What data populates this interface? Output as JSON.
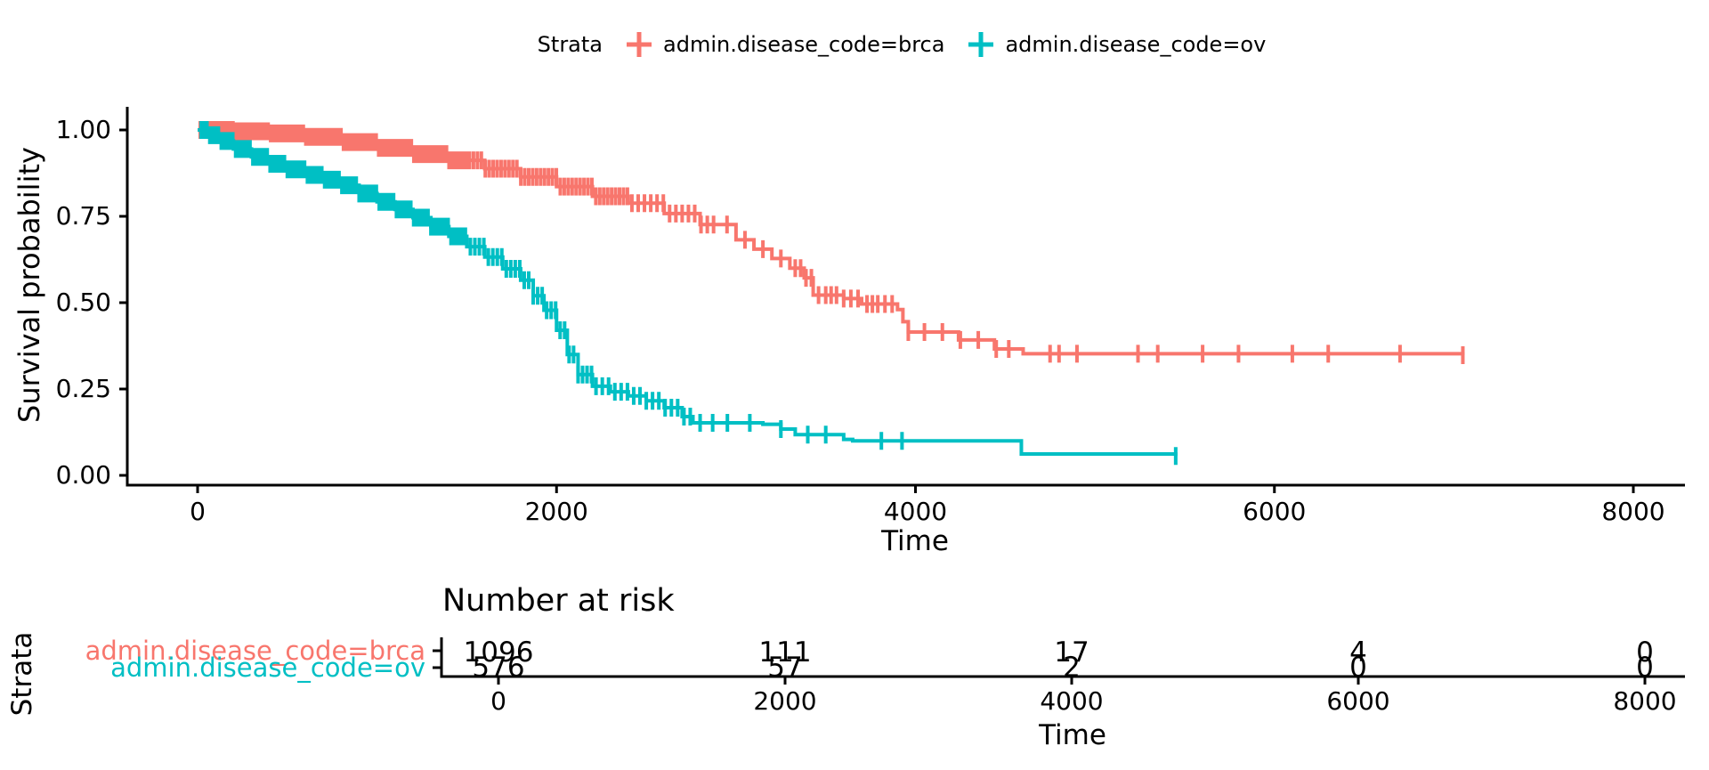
{
  "legend": {
    "title": "Strata",
    "entries": [
      {
        "label": "admin.disease_code=brca",
        "color": "#F8766D"
      },
      {
        "label": "admin.disease_code=ov",
        "color": "#00BFC4"
      }
    ]
  },
  "main_plot": {
    "ylabel": "Survival probability",
    "xlabel": "Time",
    "y_ticks": [
      "1.00",
      "0.75",
      "0.50",
      "0.25",
      "0.00"
    ],
    "y_tick_values": [
      1,
      0.75,
      0.5,
      0.25,
      0
    ],
    "x_ticks": [
      "0",
      "2000",
      "4000",
      "6000",
      "8000"
    ],
    "x_tick_values": [
      0,
      2000,
      4000,
      6000,
      8000
    ]
  },
  "risk_table": {
    "title": "Number at risk",
    "ylabel": "Strata",
    "xlabel": "Time",
    "x_ticks": [
      "0",
      "2000",
      "4000",
      "6000",
      "8000"
    ],
    "x_tick_values": [
      0,
      2000,
      4000,
      6000,
      8000
    ],
    "rows": [
      {
        "label": "admin.disease_code=brca",
        "color": "#F8766D",
        "values": [
          "1096",
          "111",
          "17",
          "4",
          "0"
        ]
      },
      {
        "label": "admin.disease_code=ov",
        "color": "#00BFC4",
        "values": [
          "576",
          "57",
          "2",
          "0",
          "0"
        ]
      }
    ]
  },
  "chart_data": {
    "type": "line",
    "subtype": "kaplan-meier-step",
    "title": "",
    "xlabel": "Time",
    "ylabel": "Survival probability",
    "xlim": [
      0,
      8000
    ],
    "ylim": [
      0,
      1
    ],
    "grid": false,
    "legend_position": "top",
    "series": [
      {
        "name": "admin.disease_code=brca",
        "color": "#F8766D",
        "steps": [
          [
            0,
            1.0
          ],
          [
            200,
            0.996
          ],
          [
            400,
            0.99
          ],
          [
            600,
            0.98
          ],
          [
            800,
            0.965
          ],
          [
            1000,
            0.948
          ],
          [
            1200,
            0.93
          ],
          [
            1400,
            0.912
          ],
          [
            1600,
            0.888
          ],
          [
            1800,
            0.864
          ],
          [
            2000,
            0.836
          ],
          [
            2200,
            0.808
          ],
          [
            2400,
            0.788
          ],
          [
            2600,
            0.758
          ],
          [
            2800,
            0.726
          ],
          [
            3000,
            0.682
          ],
          [
            3100,
            0.655
          ],
          [
            3200,
            0.628
          ],
          [
            3300,
            0.6
          ],
          [
            3380,
            0.572
          ],
          [
            3430,
            0.522
          ],
          [
            3600,
            0.512
          ],
          [
            3700,
            0.496
          ],
          [
            3900,
            0.48
          ],
          [
            3930,
            0.445
          ],
          [
            3960,
            0.415
          ],
          [
            4240,
            0.392
          ],
          [
            4440,
            0.366
          ],
          [
            4600,
            0.352
          ],
          [
            7050,
            0.348
          ]
        ],
        "censor_ranges": [
          [
            15,
            1500,
            14
          ],
          [
            1515,
            2400,
            22
          ],
          [
            2420,
            2900,
            35
          ]
        ],
        "censors": [
          2950,
          3050,
          3150,
          3250,
          3330,
          3360,
          3390,
          3420,
          3460,
          3500,
          3530,
          3560,
          3600,
          3640,
          3680,
          3730,
          3760,
          3790,
          3830,
          3870,
          3960,
          4050,
          4150,
          4250,
          4350,
          4450,
          4520,
          4750,
          4800,
          4900,
          5240,
          5350,
          5600,
          5800,
          6100,
          6300,
          6700,
          7050
        ]
      },
      {
        "name": "admin.disease_code=ov",
        "color": "#00BFC4",
        "steps": [
          [
            0,
            1.0
          ],
          [
            60,
            0.985
          ],
          [
            120,
            0.968
          ],
          [
            200,
            0.945
          ],
          [
            300,
            0.922
          ],
          [
            400,
            0.902
          ],
          [
            500,
            0.886
          ],
          [
            600,
            0.87
          ],
          [
            700,
            0.856
          ],
          [
            800,
            0.84
          ],
          [
            900,
            0.816
          ],
          [
            1000,
            0.792
          ],
          [
            1100,
            0.77
          ],
          [
            1200,
            0.746
          ],
          [
            1300,
            0.72
          ],
          [
            1400,
            0.692
          ],
          [
            1500,
            0.662
          ],
          [
            1600,
            0.632
          ],
          [
            1700,
            0.598
          ],
          [
            1800,
            0.565
          ],
          [
            1870,
            0.52
          ],
          [
            1930,
            0.478
          ],
          [
            2000,
            0.42
          ],
          [
            2060,
            0.35
          ],
          [
            2120,
            0.292
          ],
          [
            2200,
            0.258
          ],
          [
            2300,
            0.242
          ],
          [
            2400,
            0.23
          ],
          [
            2500,
            0.216
          ],
          [
            2600,
            0.196
          ],
          [
            2700,
            0.17
          ],
          [
            2760,
            0.152
          ],
          [
            3150,
            0.148
          ],
          [
            3250,
            0.134
          ],
          [
            3330,
            0.118
          ],
          [
            3600,
            0.104
          ],
          [
            3650,
            0.1
          ],
          [
            4590,
            0.062
          ],
          [
            5450,
            0.056
          ]
        ],
        "censor_ranges": [
          [
            20,
            1500,
            16
          ],
          [
            1520,
            2200,
            25
          ],
          [
            2220,
            2750,
            35
          ]
        ],
        "censors": [
          2800,
          2870,
          2952,
          3077,
          3250,
          3400,
          3500,
          3810,
          3925,
          5450
        ]
      }
    ],
    "number_at_risk": {
      "times": [
        0,
        2000,
        4000,
        6000,
        8000
      ],
      "rows": [
        {
          "name": "admin.disease_code=brca",
          "counts": [
            1096,
            111,
            17,
            4,
            0
          ]
        },
        {
          "name": "admin.disease_code=ov",
          "counts": [
            576,
            57,
            2,
            0,
            0
          ]
        }
      ]
    }
  }
}
